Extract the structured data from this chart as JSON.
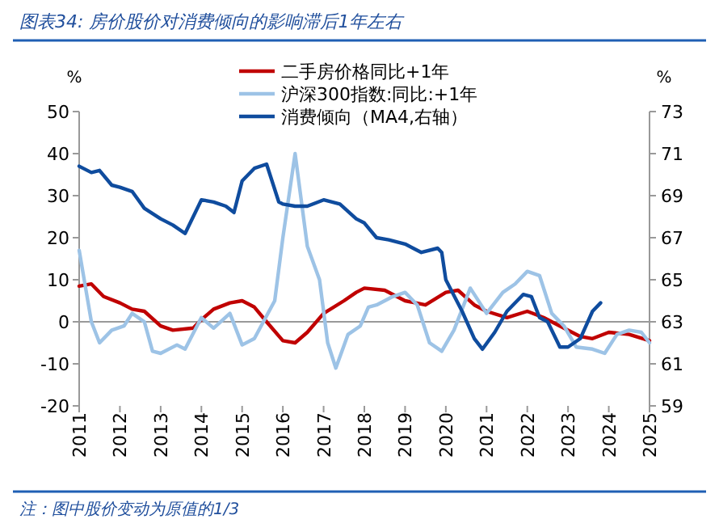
{
  "chart_data": {
    "type": "line",
    "title": "图表34: 房价股价对消费倾向的影响滞后1年左右",
    "ylabel": "%",
    "y2label": "%",
    "annotations": [
      "注：图中股价变动为原值的1/3"
    ],
    "xlim": [
      2011,
      2025
    ],
    "xticks": [
      2011,
      2012,
      2013,
      2014,
      2015,
      2016,
      2017,
      2018,
      2019,
      2020,
      2021,
      2022,
      2023,
      2024,
      2025
    ],
    "ylim": [
      -20,
      50
    ],
    "yticks": [
      -20,
      -10,
      0,
      10,
      20,
      30,
      40,
      50
    ],
    "y2lim": [
      59,
      73
    ],
    "y2ticks": [
      59,
      61,
      63,
      65,
      67,
      69,
      71,
      73
    ],
    "legend": "top right",
    "series": [
      {
        "name": "二手房价格同比+1年",
        "color": "#c00000",
        "x": [
          2011,
          2011.3,
          2011.6,
          2012,
          2012.3,
          2012.6,
          2013,
          2013.3,
          2013.8,
          2014,
          2014.3,
          2014.7,
          2015,
          2015.3,
          2015.6,
          2016,
          2016.3,
          2016.6,
          2017,
          2017.5,
          2017.8,
          2018,
          2018.5,
          2019,
          2019.5,
          2020,
          2020.3,
          2020.7,
          2021,
          2021.5,
          2022,
          2022.4,
          2022.8,
          2023.3,
          2023.6,
          2024,
          2024.5,
          2025
        ],
        "values": [
          8.5,
          9,
          6,
          4.5,
          3,
          2.5,
          -1,
          -2,
          -1.5,
          0.5,
          3,
          4.5,
          5,
          3.5,
          0,
          -4.5,
          -5,
          -2.5,
          2,
          5,
          7,
          8,
          7.5,
          5,
          4,
          7,
          7.5,
          4,
          2.5,
          1,
          2.5,
          1,
          -1,
          -3.5,
          -4,
          -2.5,
          -3,
          -4.5
        ]
      },
      {
        "name": "沪深300指数:同比:+1年",
        "color": "#9dc3e6",
        "x": [
          2011,
          2011.3,
          2011.5,
          2011.8,
          2012.1,
          2012.3,
          2012.6,
          2012.8,
          2013,
          2013.4,
          2013.6,
          2014,
          2014.3,
          2014.7,
          2015,
          2015.3,
          2015.8,
          2016,
          2016.3,
          2016.6,
          2016.9,
          2017.1,
          2017.3,
          2017.6,
          2017.9,
          2018.1,
          2018.3,
          2018.7,
          2019,
          2019.3,
          2019.6,
          2019.9,
          2020.2,
          2020.6,
          2021,
          2021.4,
          2021.7,
          2022,
          2022.3,
          2022.6,
          2022.9,
          2023.2,
          2023.6,
          2023.9,
          2024.2,
          2024.5,
          2024.8,
          2025
        ],
        "values": [
          17,
          0,
          -5,
          -2,
          -1,
          2,
          0,
          -7,
          -7.5,
          -5.5,
          -6.5,
          1,
          -1.5,
          2,
          -5.5,
          -4,
          5,
          20,
          40,
          18,
          10,
          -5,
          -11,
          -3,
          -1,
          3.5,
          4,
          6,
          7,
          4,
          -5,
          -7,
          -2,
          8,
          2,
          7,
          9,
          12,
          11,
          2,
          -1,
          -6,
          -6.5,
          -7.5,
          -3,
          -2,
          -2.5,
          -5
        ]
      },
      {
        "name": "消费倾向（MA4,右轴）",
        "color": "#0f4c9e",
        "axis": "y2",
        "x": [
          2011,
          2011.3,
          2011.5,
          2011.8,
          2012,
          2012.3,
          2012.6,
          2013,
          2013.3,
          2013.6,
          2014,
          2014.3,
          2014.6,
          2014.8,
          2015,
          2015.3,
          2015.6,
          2015.9,
          2016,
          2016.3,
          2016.6,
          2017,
          2017.4,
          2017.8,
          2018,
          2018.3,
          2018.6,
          2019,
          2019.4,
          2019.8,
          2019.9,
          2020,
          2020.4,
          2020.7,
          2020.9,
          2021.2,
          2021.5,
          2021.9,
          2022.1,
          2022.3,
          2022.5,
          2022.8,
          2023,
          2023.3,
          2023.6,
          2023.8
        ],
        "values": [
          70.4,
          70.1,
          70.2,
          69.5,
          69.4,
          69.2,
          68.4,
          67.9,
          67.6,
          67.2,
          68.8,
          68.7,
          68.5,
          68.2,
          69.7,
          70.3,
          70.5,
          68.7,
          68.6,
          68.5,
          68.5,
          68.8,
          68.6,
          67.9,
          67.7,
          67.0,
          66.9,
          66.7,
          66.3,
          66.5,
          66.3,
          65.0,
          63.5,
          62.2,
          61.7,
          62.5,
          63.5,
          64.3,
          64.2,
          63.2,
          63.0,
          61.8,
          61.8,
          62.2,
          63.5,
          63.9
        ]
      }
    ]
  }
}
